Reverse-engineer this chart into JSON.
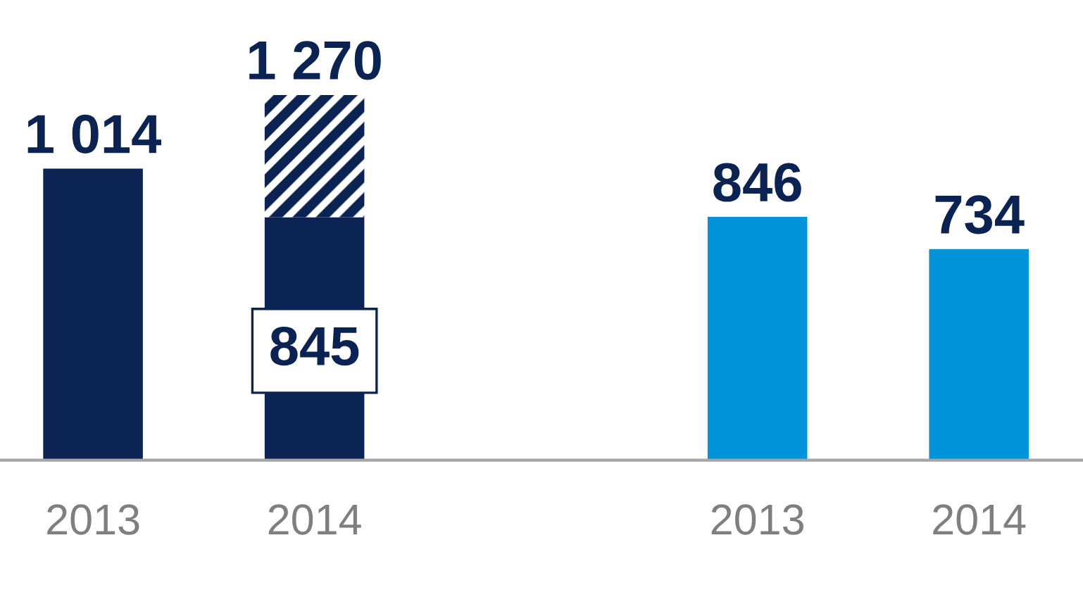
{
  "chart_data": {
    "type": "bar",
    "stacked": true,
    "categories": [
      "2013",
      "2014",
      null,
      "2013",
      "2014"
    ],
    "series": [
      {
        "color": "#0a2352",
        "colors": [
          "#0a2352",
          "#0a2352",
          "#0a2352",
          "#0093d9",
          "#0093d9"
        ],
        "values": [
          1014,
          845,
          null,
          846,
          734
        ],
        "value_labels": [
          "1 014",
          "845",
          null,
          "846",
          "734"
        ]
      },
      {
        "color": "#0a2352",
        "values": [
          null,
          425,
          null,
          null,
          null
        ]
      }
    ],
    "totals": [
      null,
      "1 270",
      null,
      null,
      null
    ],
    "grid": false,
    "legend": false
  }
}
